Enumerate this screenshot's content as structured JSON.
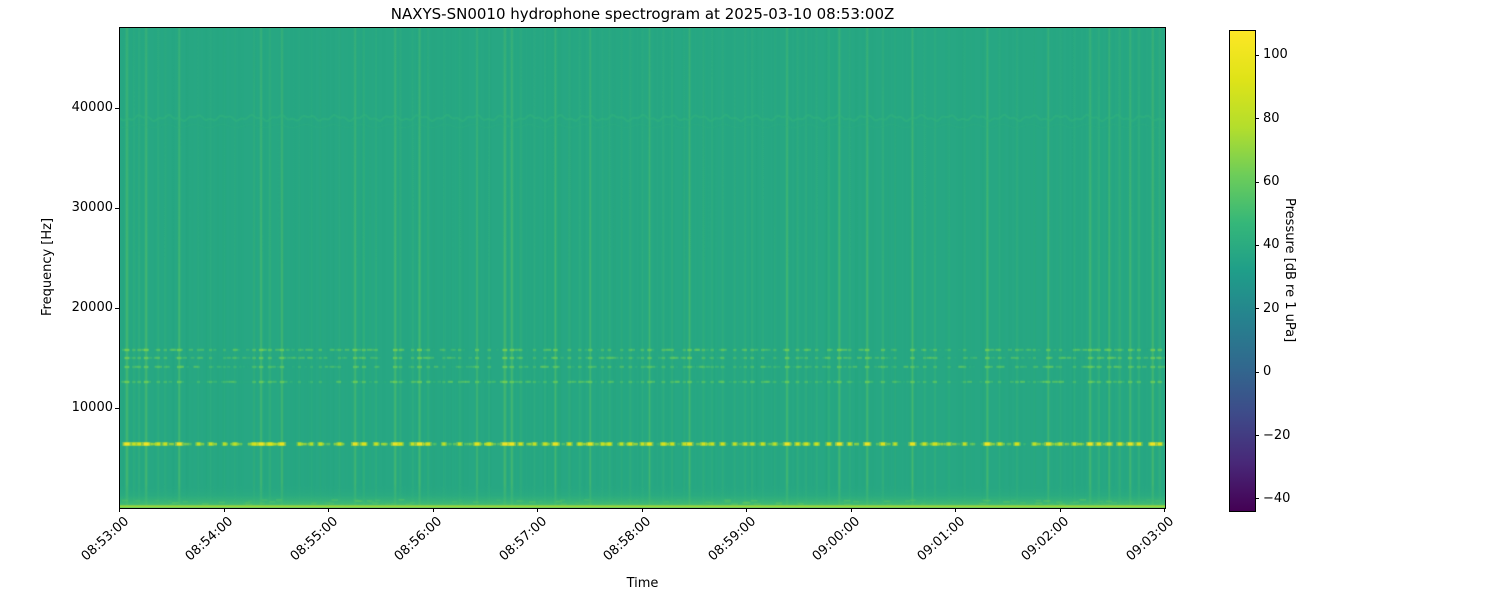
{
  "figure": {
    "background": "#ffffff"
  },
  "chart_data": {
    "type": "heatmap",
    "subtype": "spectrogram",
    "title": "NAXYS-SN0010 hydrophone spectrogram at 2025-03-10 08:53:00Z",
    "xlabel": "Time",
    "ylabel": "Frequency [Hz]",
    "x_tick_labels": [
      "08:53:00",
      "08:54:00",
      "08:55:00",
      "08:56:00",
      "08:57:00",
      "08:58:00",
      "08:59:00",
      "09:00:00",
      "09:01:00",
      "09:02:00",
      "09:03:00"
    ],
    "x_range_seconds": [
      0,
      600
    ],
    "y_tick_values": [
      10000,
      20000,
      30000,
      40000
    ],
    "y_tick_labels": [
      "10000",
      "20000",
      "30000",
      "40000"
    ],
    "freq_range_hz": [
      0,
      48000
    ],
    "grid": false,
    "colorbar": {
      "label": "Pressure [dB re 1 uPa]",
      "tick_values": [
        100,
        80,
        60,
        40,
        20,
        0,
        -20,
        -40
      ],
      "tick_labels": [
        "100",
        "80",
        "60",
        "40",
        "20",
        "0",
        "−20",
        "−40"
      ],
      "vmin": -43.5,
      "vmax": 108
    },
    "colormap": {
      "name": "viridis",
      "stops": [
        [
          0.0,
          "#440154"
        ],
        [
          0.1,
          "#482878"
        ],
        [
          0.2,
          "#3e4a89"
        ],
        [
          0.3,
          "#31688e"
        ],
        [
          0.4,
          "#26828e"
        ],
        [
          0.5,
          "#1f9e89"
        ],
        [
          0.6,
          "#35b779"
        ],
        [
          0.7,
          "#6dcd59"
        ],
        [
          0.8,
          "#b4de2c"
        ],
        [
          0.9,
          "#dfe318"
        ],
        [
          1.0,
          "#fde725"
        ]
      ]
    },
    "background_level_db": 38,
    "tonal_bands": [
      {
        "freq_hz": 39000,
        "level_db": 45,
        "style": "wavy",
        "wave_period_s": 16
      },
      {
        "freq_hz": 15800,
        "level_db": 52,
        "style": "dashed"
      },
      {
        "freq_hz": 15000,
        "level_db": 50,
        "style": "dashed"
      },
      {
        "freq_hz": 14100,
        "level_db": 48,
        "style": "dashed"
      },
      {
        "freq_hz": 12600,
        "level_db": 50,
        "style": "line-dashed"
      },
      {
        "freq_hz": 6400,
        "level_db": 85,
        "style": "dashed-strong"
      }
    ],
    "low_freq_band": {
      "freq_top_hz": 2500,
      "surface_level_db": 52,
      "bottom_line_db": 76
    },
    "clicks": [
      [
        4,
        1.0
      ],
      [
        8,
        0.5
      ],
      [
        11,
        0.6
      ],
      [
        15,
        0.95
      ],
      [
        22,
        0.55
      ],
      [
        26,
        0.5
      ],
      [
        34,
        0.9
      ],
      [
        45,
        0.4
      ],
      [
        52,
        0.45
      ],
      [
        60,
        0.3
      ],
      [
        66,
        0.4
      ],
      [
        77,
        0.6
      ],
      [
        81,
        0.9
      ],
      [
        86,
        0.7
      ],
      [
        93,
        0.85
      ],
      [
        103,
        0.35
      ],
      [
        110,
        0.3
      ],
      [
        115,
        0.4
      ],
      [
        126,
        0.45
      ],
      [
        135,
        0.85
      ],
      [
        140,
        0.7
      ],
      [
        147,
        0.5
      ],
      [
        158,
        0.9
      ],
      [
        161,
        0.6
      ],
      [
        168,
        0.5
      ],
      [
        172,
        0.95
      ],
      [
        177,
        0.6
      ],
      [
        186,
        0.4
      ],
      [
        195,
        0.5
      ],
      [
        205,
        0.75
      ],
      [
        212,
        0.5
      ],
      [
        221,
        1.0
      ],
      [
        225,
        0.9
      ],
      [
        230,
        0.6
      ],
      [
        238,
        0.45
      ],
      [
        244,
        0.5
      ],
      [
        250,
        0.85
      ],
      [
        258,
        0.6
      ],
      [
        264,
        0.5
      ],
      [
        270,
        0.8
      ],
      [
        277,
        0.45
      ],
      [
        281,
        0.55
      ],
      [
        288,
        0.4
      ],
      [
        293,
        0.6
      ],
      [
        300,
        0.5
      ],
      [
        304,
        0.8
      ],
      [
        312,
        0.6
      ],
      [
        317,
        0.55
      ],
      [
        324,
        0.45
      ],
      [
        327,
        0.85
      ],
      [
        335,
        0.6
      ],
      [
        340,
        0.5
      ],
      [
        346,
        0.6
      ],
      [
        353,
        0.45
      ],
      [
        359,
        0.55
      ],
      [
        363,
        0.6
      ],
      [
        369,
        0.5
      ],
      [
        376,
        0.4
      ],
      [
        383,
        0.9
      ],
      [
        389,
        0.6
      ],
      [
        394,
        0.55
      ],
      [
        400,
        0.5
      ],
      [
        407,
        0.6
      ],
      [
        413,
        0.9
      ],
      [
        419,
        0.5
      ],
      [
        429,
        0.9
      ],
      [
        438,
        0.7
      ],
      [
        445,
        0.4
      ],
      [
        455,
        0.85
      ],
      [
        462,
        0.5
      ],
      [
        468,
        0.6
      ],
      [
        476,
        0.4
      ],
      [
        485,
        0.45
      ],
      [
        498,
        0.9
      ],
      [
        505,
        0.5
      ],
      [
        515,
        0.6
      ],
      [
        525,
        0.4
      ],
      [
        533,
        0.8
      ],
      [
        540,
        0.45
      ],
      [
        548,
        0.5
      ],
      [
        557,
        0.9
      ],
      [
        562,
        0.7
      ],
      [
        568,
        0.8
      ],
      [
        574,
        0.7
      ],
      [
        580,
        0.85
      ],
      [
        585,
        0.7
      ],
      [
        593,
        0.95
      ],
      [
        597,
        0.7
      ]
    ],
    "noise_texture": {
      "count": 300,
      "seed": 11,
      "alpha": 0.1
    }
  }
}
